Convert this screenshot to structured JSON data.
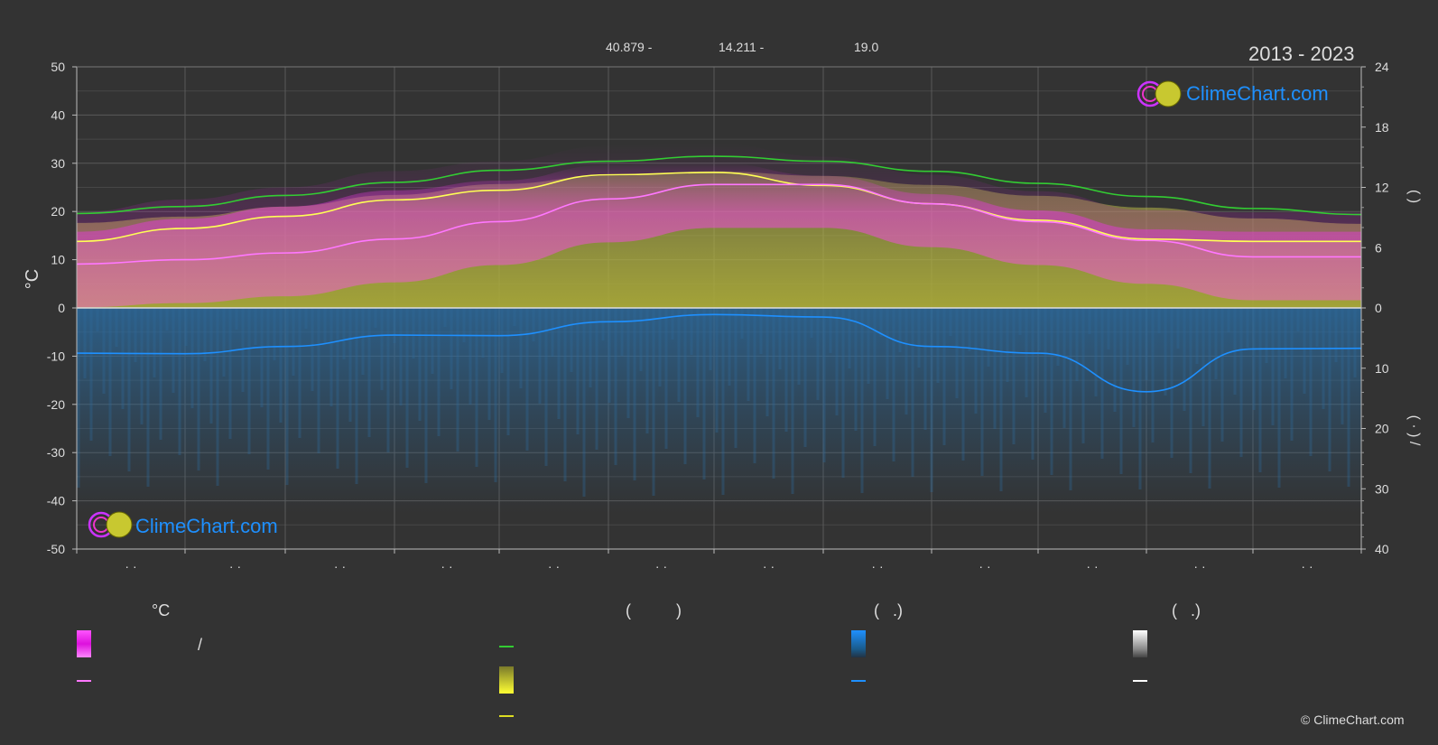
{
  "header": {
    "coords_lat": "40.879 -",
    "coords_lon": "14.211 -",
    "elevation": "19.0",
    "years": "2013 - 2023"
  },
  "brand": {
    "name": "ClimeChart.com",
    "copyright": "© ClimeChart.com"
  },
  "legend": {
    "temp_heading": "°C",
    "sun_heading": "(          )",
    "rain_heading": "(   .)",
    "snow_heading": "(   .)",
    "temp_range_sep": "/"
  },
  "colors": {
    "background": "#333333",
    "temp_max": "#ffff55",
    "temp_mean": "#ff77ff",
    "daylight": "#33cc33",
    "precip": "#1e90ff",
    "temp_band": "#ff33ff",
    "sun_band": "#b0b040",
    "snow": "#ffffff"
  },
  "chart_data": {
    "type": "line",
    "months": [
      "· ·",
      "· ·",
      "· ·",
      "· ·",
      "· ·",
      "· ·",
      "· ·",
      "· ·",
      "· ·",
      "· ·",
      "· ·",
      "· ·"
    ],
    "x": [
      0,
      1,
      2,
      3,
      4,
      5,
      6,
      7,
      8,
      9,
      10,
      11,
      12
    ],
    "left_axis": {
      "ticks": [
        50,
        40,
        30,
        20,
        10,
        0,
        -10,
        -20,
        -30,
        -40,
        -50
      ],
      "ylim": [
        -50,
        50
      ],
      "label": "°C"
    },
    "right_axis_top": {
      "ticks": [
        24,
        18,
        12,
        6,
        0
      ],
      "ylim": [
        0,
        24
      ],
      "label": "(  )"
    },
    "right_axis_bottom": {
      "ticks": [
        0,
        10,
        20,
        30,
        40
      ],
      "ylim": [
        0,
        40
      ],
      "label": "( · )  /"
    },
    "series": [
      {
        "key": "daylight",
        "axis": "right_top",
        "values": [
          9.4,
          10.1,
          11.2,
          12.5,
          13.7,
          14.6,
          15.1,
          14.6,
          13.6,
          12.4,
          11.1,
          9.9,
          9.3
        ]
      },
      {
        "key": "temp_max",
        "axis": "left",
        "values": [
          13.8,
          16.5,
          19.0,
          22.4,
          24.4,
          27.6,
          28.1,
          25.4,
          21.6,
          18.2,
          14.3,
          13.8,
          13.8
        ]
      },
      {
        "key": "temp_mean",
        "axis": "left",
        "values": [
          9.1,
          10.0,
          11.4,
          14.3,
          17.9,
          22.6,
          25.6,
          25.6,
          21.6,
          17.9,
          14.0,
          10.6,
          10.6
        ]
      },
      {
        "key": "precip",
        "axis": "right_bottom",
        "values": [
          7.5,
          7.6,
          6.4,
          4.5,
          4.6,
          2.3,
          1.1,
          1.5,
          6.4,
          7.5,
          13.9,
          6.8,
          6.7
        ]
      }
    ]
  }
}
